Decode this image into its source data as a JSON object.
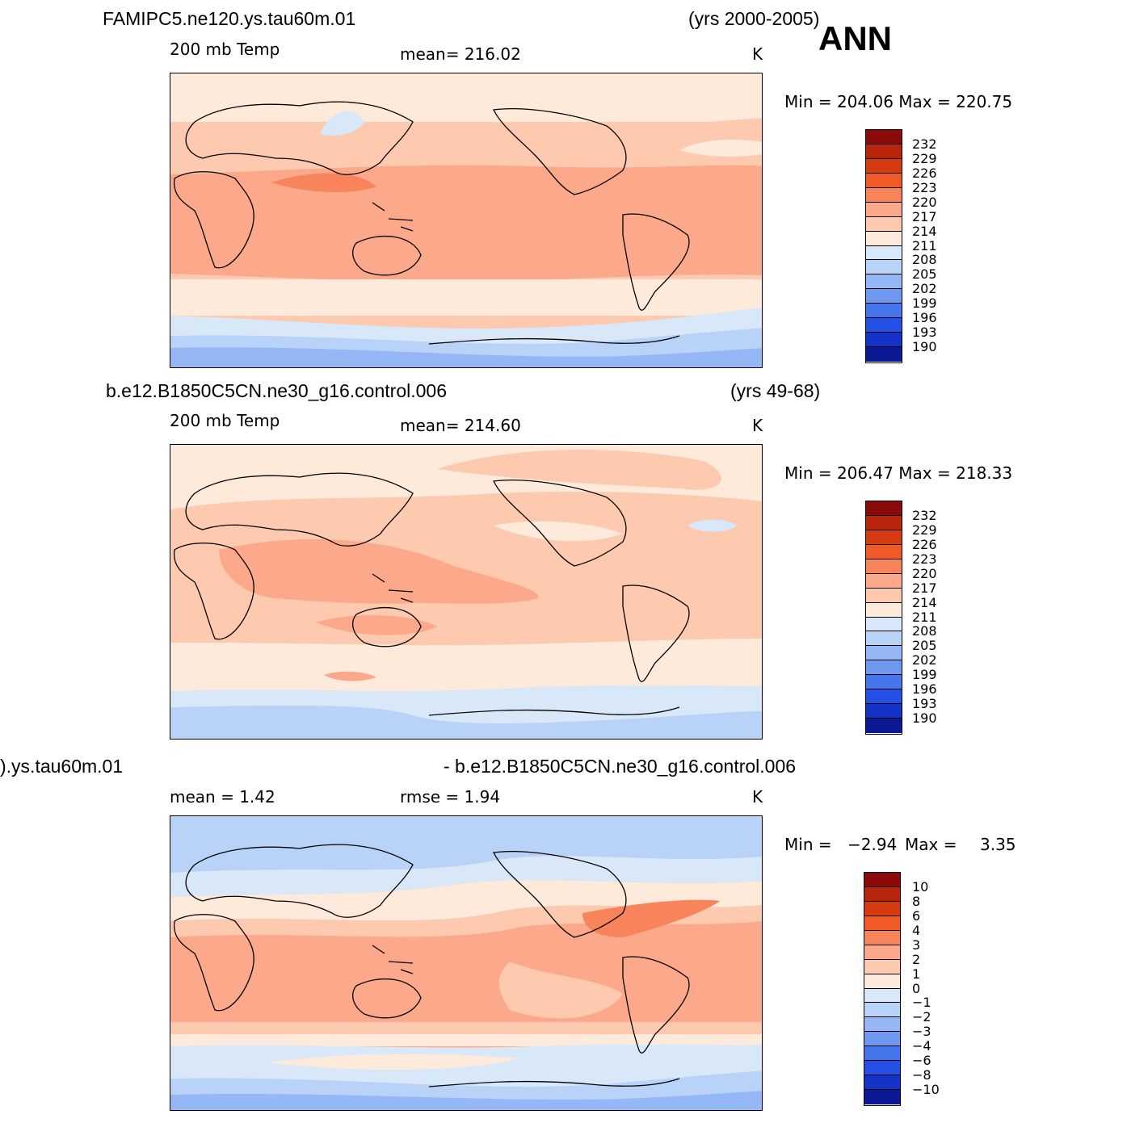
{
  "season": "ANN",
  "panels": [
    {
      "case_name": "FAMIPC5.ne120.ys.tau60m.01",
      "years": "(yrs 2000-2005)",
      "field": "200 mb Temp",
      "stat_center": "mean=  216.02",
      "units": "K",
      "minmax": "Min  =  204.06  Max  =  220.75",
      "colorbar_labels": [
        "232",
        "229",
        "226",
        "223",
        "220",
        "217",
        "214",
        "211",
        "208",
        "205",
        "202",
        "199",
        "196",
        "193",
        "190"
      ],
      "colorbar_colors": [
        "#8b0a0a",
        "#b8250c",
        "#d63a10",
        "#f05a26",
        "#f7845a",
        "#fba98a",
        "#fdcab0",
        "#feeada",
        "#d8e8f9",
        "#b9d2f7",
        "#95b7f5",
        "#6f98f1",
        "#4676ee",
        "#2550e6",
        "#1433c8",
        "#0b1a94"
      ]
    },
    {
      "case_name": "b.e12.B1850C5CN.ne30_g16.control.006",
      "years": "(yrs 49-68)",
      "field": "200 mb Temp",
      "stat_center": "mean=  214.60",
      "units": "K",
      "minmax": "Min  =  206.47  Max  =  218.33",
      "colorbar_labels": [
        "232",
        "229",
        "226",
        "223",
        "220",
        "217",
        "214",
        "211",
        "208",
        "205",
        "202",
        "199",
        "196",
        "193",
        "190"
      ],
      "colorbar_colors": [
        "#8b0a0a",
        "#b8250c",
        "#d63a10",
        "#f05a26",
        "#f7845a",
        "#fba98a",
        "#fdcab0",
        "#feeada",
        "#d8e8f9",
        "#b9d2f7",
        "#95b7f5",
        "#6f98f1",
        "#4676ee",
        "#2550e6",
        "#1433c8",
        "#0b1a94"
      ]
    },
    {
      "case_name_left": ").ys.tau60m.01",
      "case_name_right": "- b.e12.B1850C5CN.ne30_g16.control.006",
      "stat_left": "mean  =     1.42",
      "stat_center": "rmse  =     1.94",
      "units": "K",
      "minmax_label": "Min  =",
      "minmax_min": "−2.94",
      "minmax_max_label": "Max  =",
      "minmax_max": "3.35",
      "colorbar_labels": [
        "10",
        "8",
        "6",
        "4",
        "3",
        "2",
        "1",
        "0",
        "−1",
        "−2",
        "−3",
        "−4",
        "−6",
        "−8",
        "−10"
      ],
      "colorbar_colors": [
        "#8b0a0a",
        "#b8250c",
        "#d63a10",
        "#f05a26",
        "#f7845a",
        "#fba98a",
        "#fdcab0",
        "#feeada",
        "#d8e8f9",
        "#b9d2f7",
        "#95b7f5",
        "#6f98f1",
        "#4676ee",
        "#2550e6",
        "#1433c8",
        "#0b1a94"
      ]
    }
  ]
}
